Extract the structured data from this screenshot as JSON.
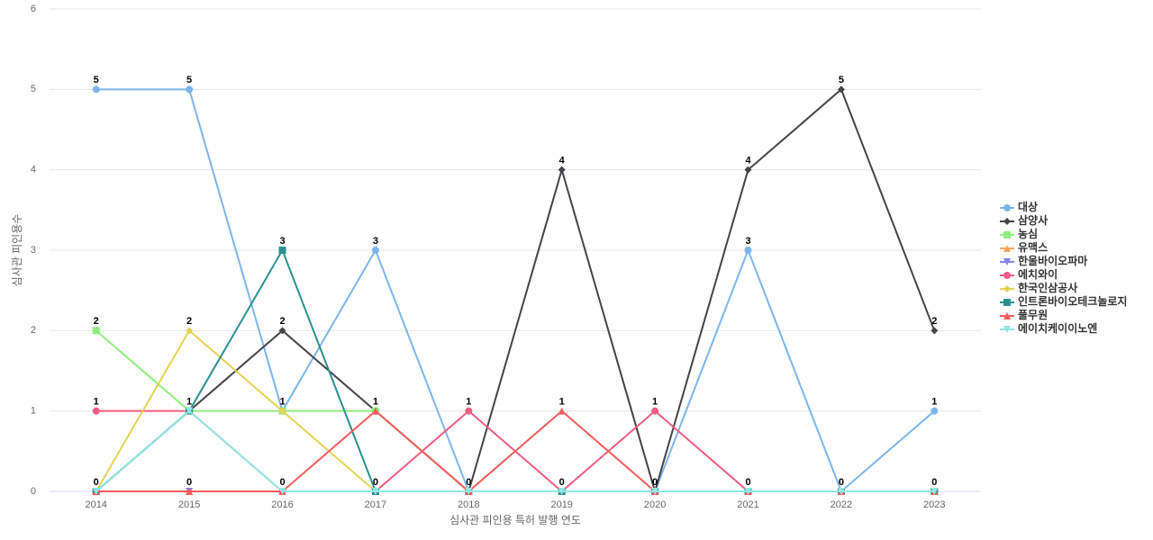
{
  "chart_data": {
    "type": "line",
    "x_label": "심사관 피인용 특허 발행 연도",
    "y_label": "심사관 피인용수",
    "categories": [
      "2014",
      "2015",
      "2016",
      "2017",
      "2018",
      "2019",
      "2020",
      "2021",
      "2022",
      "2023"
    ],
    "ylim": [
      0,
      6
    ],
    "yticks": [
      0,
      1,
      2,
      3,
      4,
      5,
      6
    ],
    "grid": true,
    "legend": "right",
    "series": [
      {
        "name": "대상",
        "color": "#7cb5ec",
        "symbol": "circle",
        "values": [
          5,
          5,
          1,
          3,
          0,
          0,
          0,
          3,
          0,
          1
        ]
      },
      {
        "name": "삼양사",
        "color": "#434348",
        "symbol": "diamond",
        "values": [
          0,
          1,
          2,
          1,
          0,
          4,
          0,
          4,
          5,
          2
        ]
      },
      {
        "name": "농심",
        "color": "#90ed7d",
        "symbol": "square",
        "values": [
          2,
          1,
          1,
          1,
          0,
          0,
          0,
          0,
          0,
          0
        ]
      },
      {
        "name": "유맥스",
        "color": "#f7a35c",
        "symbol": "triangle",
        "values": [
          0,
          0,
          0,
          0,
          0,
          0,
          0,
          0,
          0,
          0
        ]
      },
      {
        "name": "한울바이오파마",
        "color": "#8085e9",
        "symbol": "triangle-down",
        "values": [
          0,
          0,
          0,
          0,
          0,
          0,
          0,
          0,
          0,
          0
        ]
      },
      {
        "name": "에치와이",
        "color": "#f15c80",
        "symbol": "circle",
        "values": [
          1,
          1,
          0,
          0,
          1,
          0,
          1,
          0,
          0,
          0
        ]
      },
      {
        "name": "한국인삼공사",
        "color": "#e4d354",
        "symbol": "diamond",
        "values": [
          0,
          2,
          1,
          0,
          0,
          0,
          0,
          0,
          0,
          0
        ]
      },
      {
        "name": "인트론바이오테크놀로지",
        "color": "#2b908f",
        "symbol": "square",
        "values": [
          0,
          1,
          3,
          0,
          0,
          0,
          0,
          0,
          0,
          0
        ]
      },
      {
        "name": "풀무원",
        "color": "#f45b5b",
        "symbol": "triangle",
        "values": [
          0,
          0,
          0,
          1,
          0,
          1,
          0,
          0,
          0,
          0
        ]
      },
      {
        "name": "에이치케이이노엔",
        "color": "#91e8e1",
        "symbol": "triangle-down",
        "values": [
          0,
          1,
          0,
          0,
          0,
          0,
          0,
          0,
          0,
          0
        ]
      }
    ]
  }
}
